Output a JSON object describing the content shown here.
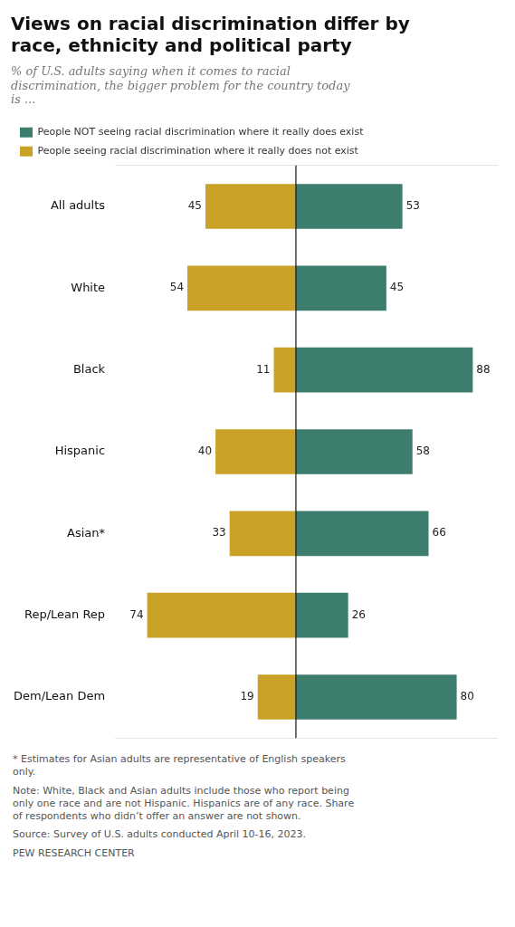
{
  "chart_data": {
    "type": "bar",
    "orientation": "horizontal",
    "title": "Views on racial discrimination differ by\nrace, ethnicity and political party",
    "subtitle": "% of U.S. adults saying when it comes to racial\ndiscrimination, the bigger problem for the country today\nis ...",
    "categories": [
      "All adults",
      "White",
      "Black",
      "Hispanic",
      "Asian*",
      "Rep/Lean Rep",
      "Dem/Lean Dem"
    ],
    "series": [
      {
        "name": "People NOT seeing racial discrimination where it really does exist",
        "color": "#3d7d6e",
        "values": [
          53,
          45,
          88,
          58,
          66,
          26,
          80
        ]
      },
      {
        "name": "People seeing racial discrimination where it really does not exist",
        "color": "#c9a227",
        "values": [
          45,
          54,
          11,
          40,
          33,
          74,
          19
        ],
        "axis": "x2"
      }
    ],
    "xlim": [
      -90,
      100
    ],
    "x2lim": [
      90,
      -100
    ],
    "tick_labels": "y",
    "grid": false,
    "legend": "top",
    "data_labels": true,
    "annotations": [
      "* Estimates for Asian adults are representative of English speakers\nonly.",
      "Note: White, Black and Asian adults include those who report being\nonly one race and are not Hispanic. Hispanics are of any race. Share\nof respondents who didn’t offer an answer are not shown.",
      "Source: Survey of U.S. adults conducted April 10-16, 2023.",
      "PEW RESEARCH CENTER"
    ]
  }
}
